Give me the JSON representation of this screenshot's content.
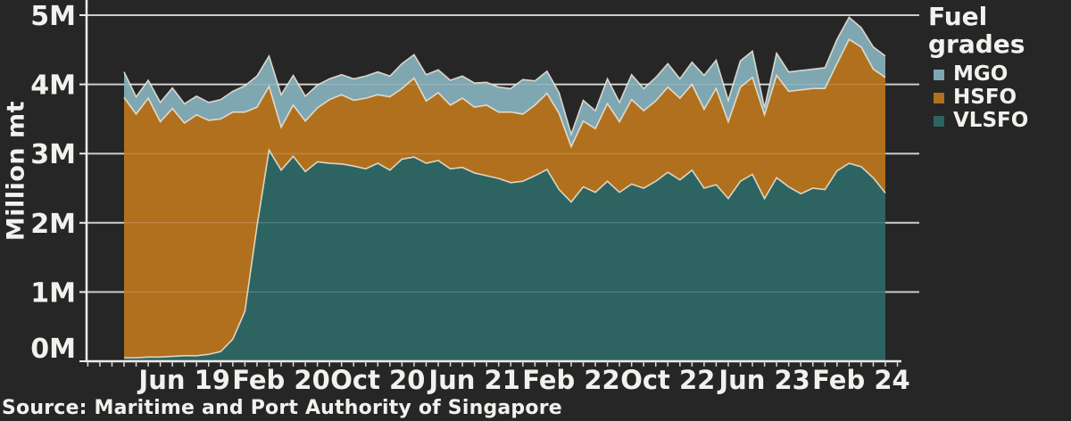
{
  "chart_data": {
    "type": "area",
    "stacked": true,
    "ylabel": "Million mt",
    "ylim": [
      0,
      5
    ],
    "y_tick_labels": [
      "0M",
      "1M",
      "2M",
      "3M",
      "4M",
      "5M"
    ],
    "grid": true,
    "legend": {
      "title": "Fuel grades",
      "position": "top-right",
      "order": [
        "MGO",
        "HSFO",
        "VLSFO"
      ]
    },
    "source": "Source: Maritime and Port Authority of Singapore",
    "x_tick_labels": [
      "Jun 19",
      "Feb 20",
      "Oct 20",
      "Jun 21",
      "Feb 22",
      "Oct 22",
      "Jun 23",
      "Feb 24"
    ],
    "x_tick_indices": [
      5,
      13,
      21,
      29,
      37,
      45,
      53,
      61
    ],
    "x": [
      "Jan 19",
      "Feb 19",
      "Mar 19",
      "Apr 19",
      "May 19",
      "Jun 19",
      "Jul 19",
      "Aug 19",
      "Sep 19",
      "Oct 19",
      "Nov 19",
      "Dec 19",
      "Jan 20",
      "Feb 20",
      "Mar 20",
      "Apr 20",
      "May 20",
      "Jun 20",
      "Jul 20",
      "Aug 20",
      "Sep 20",
      "Oct 20",
      "Nov 20",
      "Dec 20",
      "Jan 21",
      "Feb 21",
      "Mar 21",
      "Apr 21",
      "May 21",
      "Jun 21",
      "Jul 21",
      "Aug 21",
      "Sep 21",
      "Oct 21",
      "Nov 21",
      "Dec 21",
      "Jan 22",
      "Feb 22",
      "Mar 22",
      "Apr 22",
      "May 22",
      "Jun 22",
      "Jul 22",
      "Aug 22",
      "Sep 22",
      "Oct 22",
      "Nov 22",
      "Dec 22",
      "Jan 23",
      "Feb 23",
      "Mar 23",
      "Apr 23",
      "May 23",
      "Jun 23",
      "Jul 23",
      "Aug 23",
      "Sep 23",
      "Oct 23",
      "Nov 23",
      "Dec 23",
      "Jan 24",
      "Feb 24",
      "Mar 24",
      "Apr 24"
    ],
    "series": [
      {
        "name": "VLSFO",
        "color": "#2d6462",
        "values": [
          0.05,
          0.05,
          0.06,
          0.06,
          0.07,
          0.08,
          0.08,
          0.1,
          0.14,
          0.32,
          0.72,
          1.95,
          3.05,
          2.76,
          2.96,
          2.74,
          2.88,
          2.86,
          2.85,
          2.82,
          2.78,
          2.86,
          2.76,
          2.92,
          2.95,
          2.86,
          2.9,
          2.78,
          2.8,
          2.72,
          2.68,
          2.64,
          2.58,
          2.6,
          2.68,
          2.77,
          2.48,
          2.3,
          2.52,
          2.44,
          2.6,
          2.44,
          2.56,
          2.5,
          2.6,
          2.73,
          2.62,
          2.76,
          2.5,
          2.55,
          2.35,
          2.6,
          2.7,
          2.35,
          2.65,
          2.52,
          2.42,
          2.5,
          2.48,
          2.75,
          2.86,
          2.81,
          2.65,
          2.43
        ]
      },
      {
        "name": "HSFO",
        "color": "#b1701d",
        "values": [
          3.76,
          3.52,
          3.74,
          3.4,
          3.58,
          3.36,
          3.48,
          3.38,
          3.36,
          3.28,
          2.88,
          1.72,
          0.92,
          0.62,
          0.74,
          0.73,
          0.78,
          0.92,
          1.0,
          0.95,
          1.02,
          0.99,
          1.06,
          1.02,
          1.14,
          0.9,
          0.98,
          0.92,
          1.0,
          0.95,
          1.02,
          0.96,
          1.02,
          0.97,
          1.02,
          1.1,
          1.1,
          0.8,
          0.95,
          0.92,
          1.12,
          1.02,
          1.22,
          1.12,
          1.16,
          1.23,
          1.18,
          1.24,
          1.14,
          1.39,
          1.11,
          1.36,
          1.4,
          1.21,
          1.48,
          1.38,
          1.5,
          1.44,
          1.46,
          1.55,
          1.79,
          1.73,
          1.57,
          1.67
        ]
      },
      {
        "name": "MGO",
        "color": "#7fa7b2",
        "values": [
          0.37,
          0.25,
          0.26,
          0.28,
          0.3,
          0.28,
          0.27,
          0.26,
          0.28,
          0.3,
          0.38,
          0.45,
          0.44,
          0.47,
          0.43,
          0.36,
          0.33,
          0.3,
          0.29,
          0.31,
          0.32,
          0.33,
          0.3,
          0.36,
          0.34,
          0.38,
          0.33,
          0.36,
          0.32,
          0.35,
          0.33,
          0.36,
          0.34,
          0.5,
          0.35,
          0.32,
          0.3,
          0.18,
          0.3,
          0.26,
          0.36,
          0.28,
          0.36,
          0.32,
          0.34,
          0.34,
          0.28,
          0.32,
          0.49,
          0.41,
          0.31,
          0.38,
          0.38,
          0.1,
          0.32,
          0.28,
          0.28,
          0.28,
          0.3,
          0.35,
          0.32,
          0.28,
          0.32,
          0.31
        ]
      }
    ],
    "colors": {
      "background": "#272626",
      "text": "#f3f1ee",
      "gridline": "#cbcbcb",
      "axis": "#ececec",
      "area_edge": "#f0e9da"
    }
  }
}
